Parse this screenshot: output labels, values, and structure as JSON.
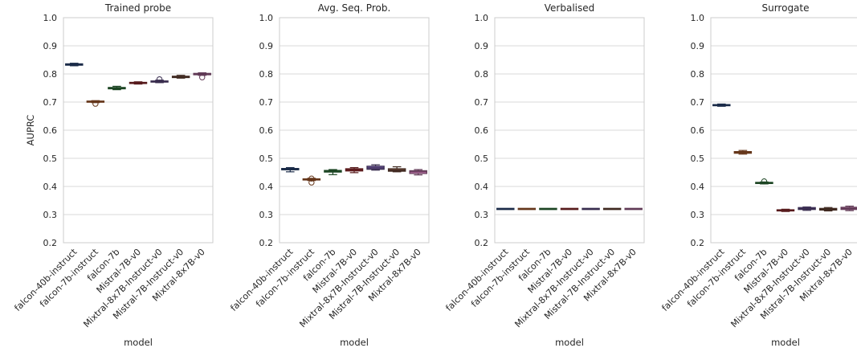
{
  "figure": {
    "ylabel": "AUPRC"
  },
  "chart_data": [
    {
      "type": "box",
      "title": "Trained probe",
      "xlabel": "model",
      "ylabel": "AUPRC",
      "ylim": [
        0.2,
        1.0
      ],
      "yticks": [
        0.2,
        0.3,
        0.4,
        0.5,
        0.6,
        0.7,
        0.8,
        0.9,
        1.0
      ],
      "grid": true,
      "categories": [
        "falcon-40b-instruct",
        "falcon-7b-instruct",
        "falcon-7b",
        "Mistral-7B-v0",
        "Mixtral-8x7B-Instruct-v0",
        "Mistral-7B-Instruct-v0",
        "Mixtral-8x7B-v0"
      ],
      "boxes": [
        {
          "whislo": 0.829,
          "q1": 0.831,
          "med": 0.833,
          "q3": 0.836,
          "whishi": 0.838,
          "fliers": []
        },
        {
          "whislo": 0.698,
          "q1": 0.7,
          "med": 0.702,
          "q3": 0.703,
          "whishi": 0.705,
          "fliers": [
            0.694
          ]
        },
        {
          "whislo": 0.744,
          "q1": 0.747,
          "med": 0.75,
          "q3": 0.752,
          "whishi": 0.756,
          "fliers": []
        },
        {
          "whislo": 0.764,
          "q1": 0.766,
          "med": 0.768,
          "q3": 0.77,
          "whishi": 0.772,
          "fliers": []
        },
        {
          "whislo": 0.769,
          "q1": 0.771,
          "med": 0.773,
          "q3": 0.775,
          "whishi": 0.778,
          "fliers": [
            0.781
          ]
        },
        {
          "whislo": 0.785,
          "q1": 0.787,
          "med": 0.79,
          "q3": 0.792,
          "whishi": 0.795,
          "fliers": []
        },
        {
          "whislo": 0.795,
          "q1": 0.797,
          "med": 0.8,
          "q3": 0.802,
          "whishi": 0.804,
          "fliers": [
            0.788
          ]
        }
      ]
    },
    {
      "type": "box",
      "title": "Avg. Seq. Prob.",
      "xlabel": "model",
      "ylim": [
        0.2,
        1.0
      ],
      "yticks": [
        0.2,
        0.3,
        0.4,
        0.5,
        0.6,
        0.7,
        0.8,
        0.9,
        1.0
      ],
      "grid": true,
      "categories": [
        "falcon-40b-instruct",
        "falcon-7b-instruct",
        "falcon-7b",
        "Mistral-7B-v0",
        "Mixtral-8x7B-Instruct-v0",
        "Mistral-7B-Instruct-v0",
        "Mixtral-8x7B-v0"
      ],
      "boxes": [
        {
          "whislo": 0.452,
          "q1": 0.459,
          "med": 0.462,
          "q3": 0.464,
          "whishi": 0.467,
          "fliers": []
        },
        {
          "whislo": 0.421,
          "q1": 0.423,
          "med": 0.425,
          "q3": 0.427,
          "whishi": 0.429,
          "fliers": [
            0.414,
            0.428
          ]
        },
        {
          "whislo": 0.442,
          "q1": 0.451,
          "med": 0.454,
          "q3": 0.457,
          "whishi": 0.46,
          "fliers": []
        },
        {
          "whislo": 0.449,
          "q1": 0.455,
          "med": 0.459,
          "q3": 0.463,
          "whishi": 0.467,
          "fliers": []
        },
        {
          "whislo": 0.458,
          "q1": 0.461,
          "med": 0.466,
          "q3": 0.472,
          "whishi": 0.477,
          "fliers": []
        },
        {
          "whislo": 0.452,
          "q1": 0.454,
          "med": 0.458,
          "q3": 0.463,
          "whishi": 0.47,
          "fliers": []
        },
        {
          "whislo": 0.441,
          "q1": 0.446,
          "med": 0.452,
          "q3": 0.456,
          "whishi": 0.46,
          "fliers": []
        }
      ]
    },
    {
      "type": "box",
      "title": "Verbalised",
      "xlabel": "model",
      "ylim": [
        0.2,
        1.0
      ],
      "yticks": [
        0.2,
        0.3,
        0.4,
        0.5,
        0.6,
        0.7,
        0.8,
        0.9,
        1.0
      ],
      "grid": true,
      "categories": [
        "falcon-40b-instruct",
        "falcon-7b-instruct",
        "falcon-7b",
        "Mistral-7B-v0",
        "Mixtral-8x7B-Instruct-v0",
        "Mistral-7B-Instruct-v0",
        "Mixtral-8x7B-v0"
      ],
      "boxes": [
        {
          "whislo": 0.319,
          "q1": 0.3195,
          "med": 0.32,
          "q3": 0.3205,
          "whishi": 0.321,
          "fliers": []
        },
        {
          "whislo": 0.319,
          "q1": 0.3195,
          "med": 0.32,
          "q3": 0.3205,
          "whishi": 0.321,
          "fliers": []
        },
        {
          "whislo": 0.319,
          "q1": 0.3195,
          "med": 0.32,
          "q3": 0.3205,
          "whishi": 0.321,
          "fliers": []
        },
        {
          "whislo": 0.319,
          "q1": 0.3195,
          "med": 0.32,
          "q3": 0.3205,
          "whishi": 0.321,
          "fliers": []
        },
        {
          "whislo": 0.319,
          "q1": 0.3195,
          "med": 0.32,
          "q3": 0.3205,
          "whishi": 0.321,
          "fliers": []
        },
        {
          "whislo": 0.319,
          "q1": 0.3195,
          "med": 0.32,
          "q3": 0.3205,
          "whishi": 0.321,
          "fliers": []
        },
        {
          "whislo": 0.319,
          "q1": 0.3195,
          "med": 0.32,
          "q3": 0.3205,
          "whishi": 0.321,
          "fliers": []
        }
      ]
    },
    {
      "type": "box",
      "title": "Surrogate",
      "xlabel": "model",
      "ylim": [
        0.2,
        1.0
      ],
      "yticks": [
        0.2,
        0.3,
        0.4,
        0.5,
        0.6,
        0.7,
        0.8,
        0.9,
        1.0
      ],
      "grid": true,
      "categories": [
        "falcon-40b-instruct",
        "falcon-7b-instruct",
        "falcon-7b",
        "Mistral-7B-v0",
        "Mixtral-8x7B-Instruct-v0",
        "Mistral-7B-Instruct-v0",
        "Mixtral-8x7B-v0"
      ],
      "boxes": [
        {
          "whislo": 0.685,
          "q1": 0.687,
          "med": 0.689,
          "q3": 0.691,
          "whishi": 0.693,
          "fliers": []
        },
        {
          "whislo": 0.515,
          "q1": 0.518,
          "med": 0.521,
          "q3": 0.524,
          "whishi": 0.528,
          "fliers": []
        },
        {
          "whislo": 0.409,
          "q1": 0.411,
          "med": 0.413,
          "q3": 0.414,
          "whishi": 0.416,
          "fliers": [
            0.418
          ]
        },
        {
          "whislo": 0.311,
          "q1": 0.313,
          "med": 0.315,
          "q3": 0.317,
          "whishi": 0.319,
          "fliers": []
        },
        {
          "whislo": 0.315,
          "q1": 0.318,
          "med": 0.321,
          "q3": 0.325,
          "whishi": 0.327,
          "fliers": []
        },
        {
          "whislo": 0.313,
          "q1": 0.316,
          "med": 0.319,
          "q3": 0.322,
          "whishi": 0.325,
          "fliers": []
        },
        {
          "whislo": 0.314,
          "q1": 0.318,
          "med": 0.322,
          "q3": 0.326,
          "whishi": 0.33,
          "fliers": []
        }
      ]
    }
  ],
  "palette": [
    "#3a60a0",
    "#e0773a",
    "#3e9a4d",
    "#c23a3e",
    "#7d62ae",
    "#8c5a48",
    "#d881bf"
  ]
}
